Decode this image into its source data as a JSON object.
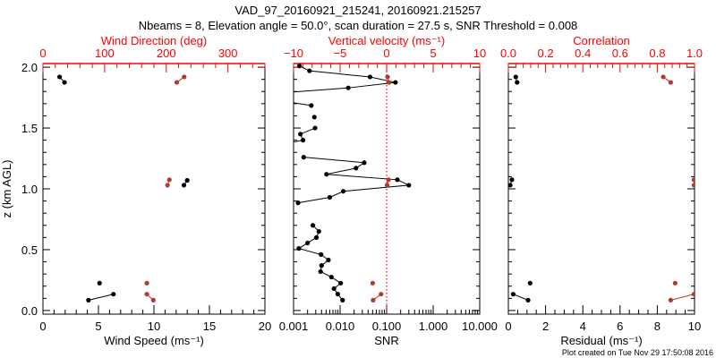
{
  "chart_data": [
    {
      "type": "scatter",
      "title_line1": "VAD_97_20160921_215241, 20160921.215257",
      "title_line2": "Nbeams = 8, Elevation angle = 50.0°, scan duration = 27.5 s, SNR Threshold = 0.008",
      "ylabel": "z (km AGL)",
      "ylim": [
        -0.03,
        2.03
      ],
      "yticks": [
        "0.0",
        "0.5",
        "1.0",
        "1.5",
        "2.0"
      ],
      "xlabel": "Wind Speed (ms⁻¹)",
      "xlim": [
        0,
        20
      ],
      "xticks": [
        "0",
        "5",
        "10",
        "15",
        "20"
      ],
      "top_xlabel": "Wind Direction (deg)",
      "top_xlim": [
        0,
        360
      ],
      "top_xticks": [
        "0",
        "100",
        "200",
        "300"
      ],
      "series": [
        {
          "name": "Wind Speed",
          "color": "#000000",
          "axis": "bottom",
          "segments": [
            [
              [
                1.5,
                1.92
              ],
              [
                1.94,
                1.875
              ]
            ],
            [
              [
                13.0,
                1.07
              ],
              [
                12.7,
                1.03
              ]
            ],
            [
              [
                5.1,
                0.225
              ]
            ],
            [
              [
                6.35,
                0.134
              ],
              [
                4.1,
                0.085
              ]
            ]
          ]
        },
        {
          "name": "Wind Direction",
          "color": "#b3392b",
          "axis": "top",
          "segments": [
            [
              [
                229,
                1.92
              ],
              [
                217,
                1.875
              ]
            ],
            [
              [
                205,
                1.075
              ],
              [
                202,
                1.03
              ]
            ],
            [
              [
                168.5,
                0.225
              ]
            ],
            [
              [
                168.5,
                0.134
              ],
              [
                179,
                0.085
              ]
            ]
          ]
        }
      ]
    },
    {
      "type": "line",
      "xlabel": "SNR",
      "xscale": "log",
      "xlim": [
        0.001,
        10
      ],
      "xticks": [
        "0.001",
        "0.010",
        "0.100",
        "1.000",
        "10.000"
      ],
      "top_xlabel": "Vertical velocity (ms⁻¹)",
      "top_xlim": [
        -10,
        10
      ],
      "top_xticks": [
        "−10",
        "−5",
        "0",
        "5",
        "10"
      ],
      "ylim": [
        -0.03,
        2.03
      ],
      "zero_velocity_line": 0,
      "series": [
        {
          "name": "SNR",
          "color": "#000000",
          "axis": "bottom",
          "segments": [
            [
              [
                0.00134,
                2.01
              ],
              [
                0.0022,
                1.97
              ],
              [
                0.044,
                1.92
              ],
              [
                0.155,
                1.875
              ],
              [
                0.015,
                1.83
              ],
              [
                0.0006,
                1.79
              ]
            ],
            [
              [
                0.0006,
                1.72
              ],
              [
                0.0024,
                1.685
              ]
            ],
            [
              [
                0.0028,
                1.59
              ]
            ],
            [
              [
                0.0029,
                1.5
              ],
              [
                0.0014,
                1.45
              ],
              [
                0.0016,
                1.4
              ],
              [
                0.0006,
                1.37
              ]
            ],
            [
              [
                0.00165,
                1.26
              ],
              [
                0.033,
                1.215
              ],
              [
                0.022,
                1.17
              ],
              [
                0.0051,
                1.12
              ],
              [
                0.17,
                1.075
              ],
              [
                0.3,
                1.03
              ],
              [
                0.0117,
                0.98
              ],
              [
                0.006,
                0.93
              ],
              [
                0.00125,
                0.885
              ]
            ],
            [
              [
                0.0026,
                0.7
              ],
              [
                0.0035,
                0.65
              ],
              [
                0.0031,
                0.6
              ],
              [
                0.002,
                0.555
              ],
              [
                0.0013,
                0.51
              ],
              [
                0.0039,
                0.46
              ],
              [
                0.0056,
                0.415
              ],
              [
                0.004,
                0.37
              ],
              [
                0.0038,
                0.32
              ],
              [
                0.0065,
                0.275
              ],
              [
                0.0103,
                0.225
              ],
              [
                0.0074,
                0.18
              ],
              [
                0.0089,
                0.135
              ],
              [
                0.0113,
                0.085
              ]
            ]
          ]
        },
        {
          "name": "Vertical velocity",
          "color": "#b3392b",
          "axis": "top",
          "segments": [
            [
              [
                0.1,
                1.92
              ],
              [
                0.25,
                1.875
              ]
            ],
            [
              [
                0.2,
                1.075
              ],
              [
                0.05,
                1.03
              ]
            ],
            [
              [
                -1.5,
                0.225
              ]
            ],
            [
              [
                -0.6,
                0.134
              ],
              [
                -1.45,
                0.085
              ]
            ]
          ]
        }
      ]
    },
    {
      "type": "scatter",
      "xlabel": "Residual (ms⁻¹)",
      "xlim": [
        0,
        10
      ],
      "xticks": [
        "0",
        "2",
        "4",
        "6",
        "8",
        "10"
      ],
      "top_xlabel": "Correlation",
      "top_xlim": [
        0,
        1
      ],
      "top_xticks": [
        "0.0",
        "0.2",
        "0.4",
        "0.6",
        "0.8",
        "1.0"
      ],
      "ylim": [
        -0.03,
        2.03
      ],
      "series": [
        {
          "name": "Residual",
          "color": "#000000",
          "axis": "bottom",
          "segments": [
            [
              [
                0.4,
                1.92
              ],
              [
                0.47,
                1.875
              ]
            ],
            [
              [
                0.19,
                1.075
              ],
              [
                0.1,
                1.03
              ]
            ],
            [
              [
                1.17,
                0.225
              ]
            ],
            [
              [
                0.26,
                0.134
              ],
              [
                1.06,
                0.085
              ]
            ]
          ]
        },
        {
          "name": "Correlation",
          "color": "#b3392b",
          "axis": "top",
          "segments": [
            [
              [
                0.832,
                1.92
              ],
              [
                0.872,
                1.875
              ]
            ],
            [
              [
                0.997,
                1.075
              ],
              [
                0.997,
                1.03
              ]
            ],
            [
              [
                0.896,
                0.225
              ]
            ],
            [
              [
                0.997,
                0.134
              ],
              [
                0.872,
                0.085
              ]
            ]
          ]
        }
      ]
    }
  ],
  "footer": "Plot created on Tue Nov 29 17:50:08 2016",
  "colors": {
    "axis_top": "#ff0000",
    "data_red": "#b3392b",
    "black": "#000000"
  }
}
